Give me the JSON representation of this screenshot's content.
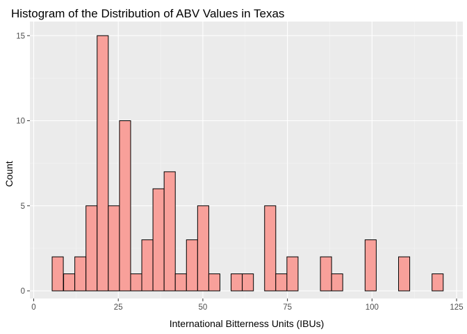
{
  "chart_data": {
    "type": "bar",
    "title": "Histogram of the Distribution of ABV Values in Texas",
    "xlabel": "International Bitterness Units (IBUs)",
    "ylabel": "Count",
    "bin_width": 3.3,
    "xlim": [
      0,
      125
    ],
    "ylim": [
      0,
      15
    ],
    "x_ticks": [
      0,
      25,
      50,
      75,
      100,
      125
    ],
    "y_ticks": [
      0,
      5,
      10,
      15
    ],
    "grid": true,
    "bar_fill": "#f8a09a",
    "bar_stroke": "#000000",
    "panel_background": "#ebebeb",
    "bins": [
      {
        "x": 7.1,
        "count": 2
      },
      {
        "x": 10.5,
        "count": 1
      },
      {
        "x": 13.8,
        "count": 2
      },
      {
        "x": 17.1,
        "count": 5
      },
      {
        "x": 20.4,
        "count": 15
      },
      {
        "x": 23.7,
        "count": 5
      },
      {
        "x": 27.0,
        "count": 10
      },
      {
        "x": 30.3,
        "count": 1
      },
      {
        "x": 33.6,
        "count": 3
      },
      {
        "x": 36.9,
        "count": 6
      },
      {
        "x": 40.2,
        "count": 7
      },
      {
        "x": 43.5,
        "count": 1
      },
      {
        "x": 46.8,
        "count": 3
      },
      {
        "x": 50.1,
        "count": 5
      },
      {
        "x": 53.4,
        "count": 1
      },
      {
        "x": 60.0,
        "count": 1
      },
      {
        "x": 63.3,
        "count": 1
      },
      {
        "x": 69.9,
        "count": 5
      },
      {
        "x": 73.2,
        "count": 1
      },
      {
        "x": 76.5,
        "count": 2
      },
      {
        "x": 86.4,
        "count": 2
      },
      {
        "x": 89.7,
        "count": 1
      },
      {
        "x": 99.6,
        "count": 3
      },
      {
        "x": 109.5,
        "count": 2
      },
      {
        "x": 119.4,
        "count": 1
      }
    ]
  }
}
